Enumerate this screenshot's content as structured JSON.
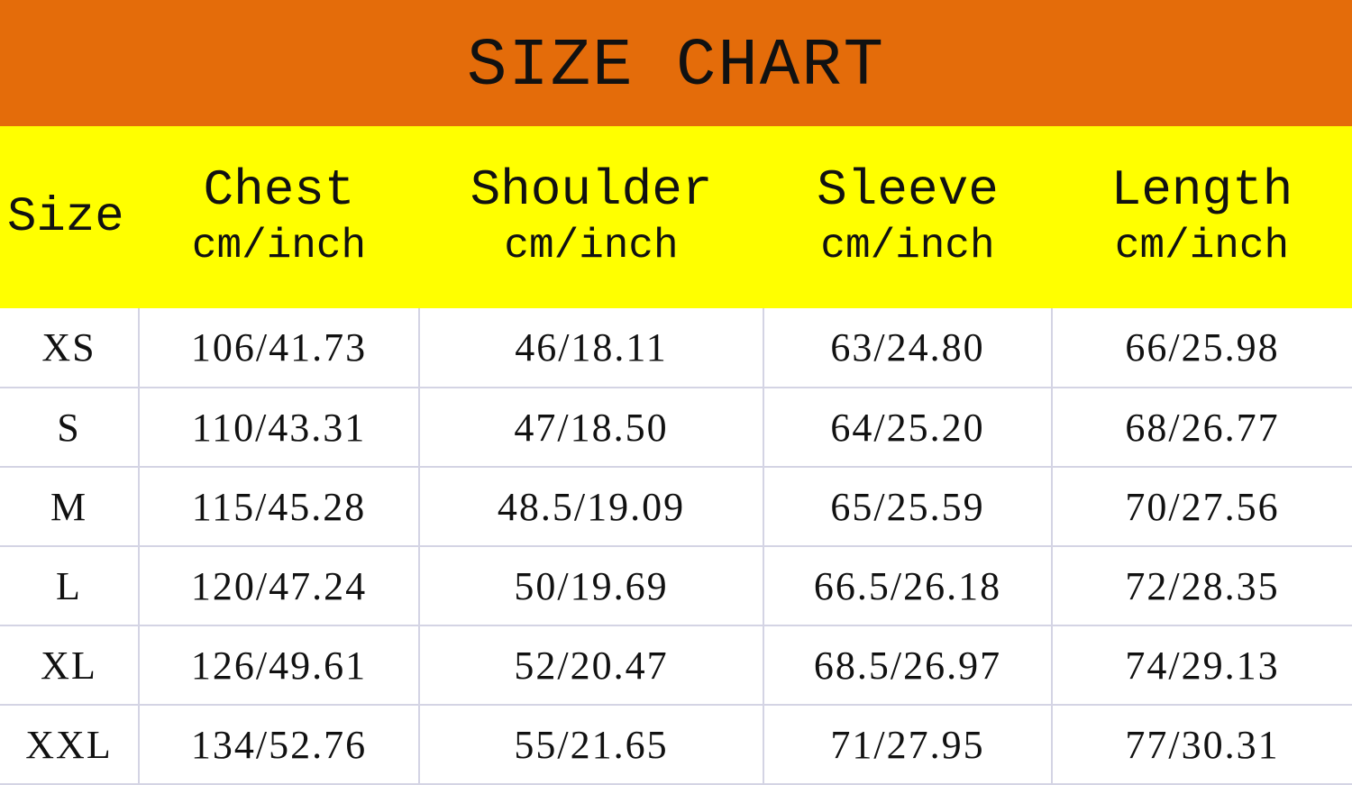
{
  "title": "SIZE CHART",
  "colors": {
    "title_band": "#e46c0a",
    "header_band": "#ffff00",
    "grid": "#d4d4e4"
  },
  "headers": [
    {
      "label": "Size",
      "unit": ""
    },
    {
      "label": "Chest",
      "unit": "cm/inch"
    },
    {
      "label": "Shoulder",
      "unit": "cm/inch"
    },
    {
      "label": "Sleeve",
      "unit": "cm/inch"
    },
    {
      "label": "Length",
      "unit": "cm/inch"
    }
  ],
  "rows": [
    [
      "XS",
      "106/41.73",
      "46/18.11",
      "63/24.80",
      "66/25.98"
    ],
    [
      "S",
      "110/43.31",
      "47/18.50",
      "64/25.20",
      "68/26.77"
    ],
    [
      "M",
      "115/45.28",
      "48.5/19.09",
      "65/25.59",
      "70/27.56"
    ],
    [
      "L",
      "120/47.24",
      "50/19.69",
      "66.5/26.18",
      "72/28.35"
    ],
    [
      "XL",
      "126/49.61",
      "52/20.47",
      "68.5/26.97",
      "74/29.13"
    ],
    [
      "XXL",
      "134/52.76",
      "55/21.65",
      "71/27.95",
      "77/30.31"
    ]
  ]
}
